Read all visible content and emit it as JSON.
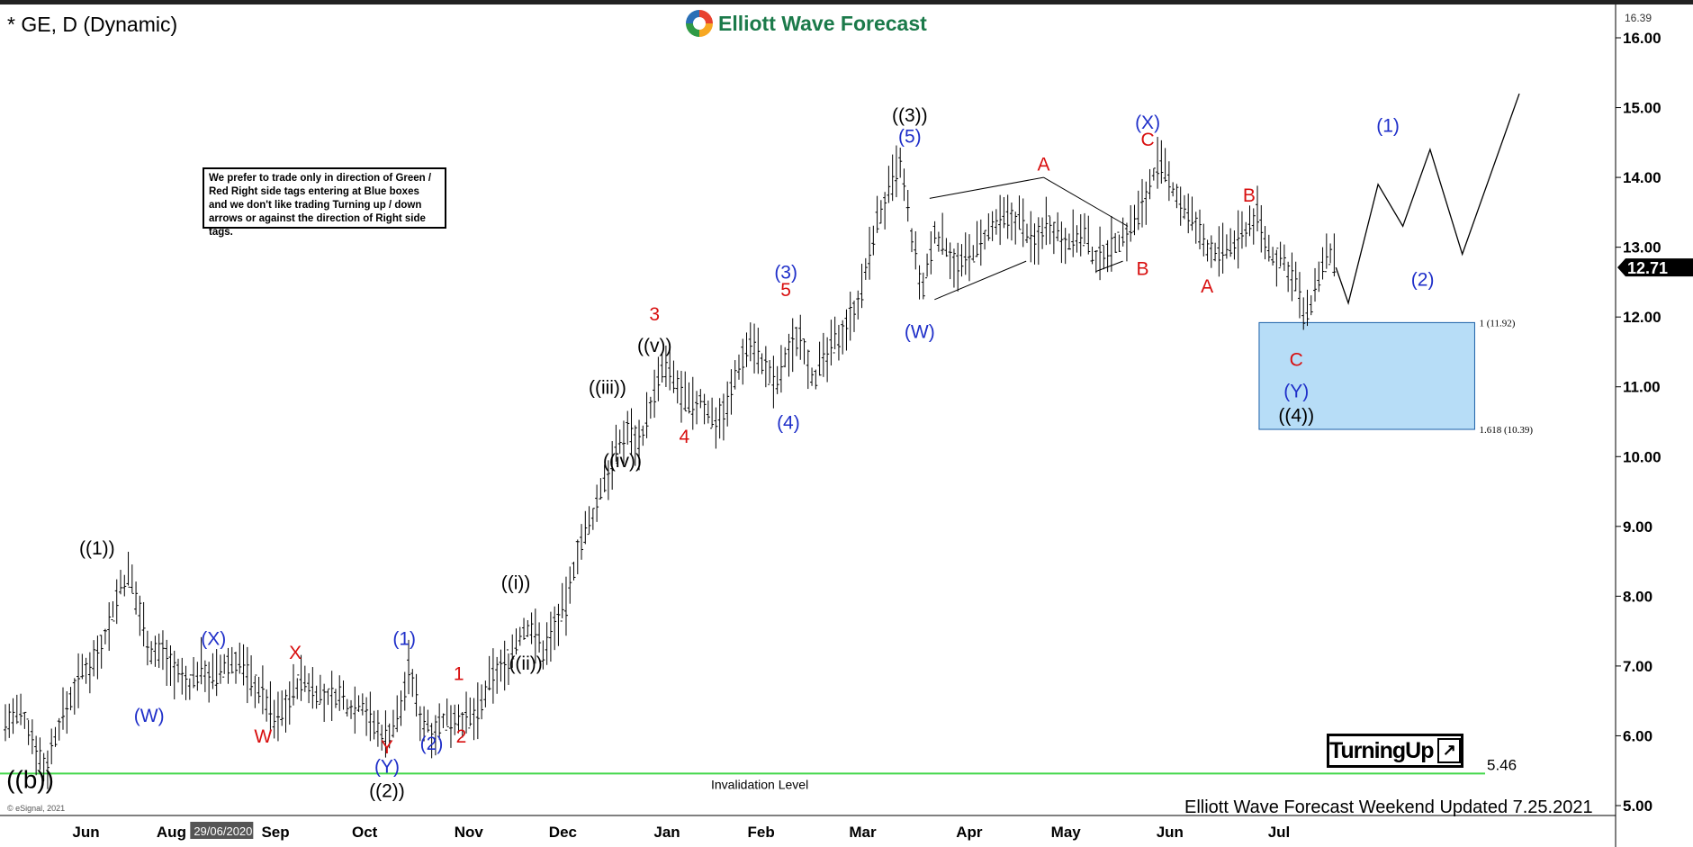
{
  "header": {
    "chart_title": "* GE, D (Dynamic)",
    "brand_name": "Elliott Wave Forecast",
    "top_price_badge": "16.39"
  },
  "note_text": "We prefer to trade only in direction of Green / Red Right side tags entering at Blue boxes and we don't like trading Turning up / down arrows or against the direction of Right side tags.",
  "footer": {
    "updated": "Elliott Wave Forecast Weekend Updated 7.25.2021",
    "esignal": "© eSignal, 2021"
  },
  "turning_label": "TurningUp",
  "colors": {
    "wave_blue": "#1f2fc9",
    "wave_red": "#d80f0f",
    "wave_black": "#000000",
    "invalidation_green": "#43d64a",
    "blue_box": "#b7ddf7",
    "blue_box_border": "#1a5fa8",
    "last_price_bg": "#000000"
  },
  "chart_data": {
    "type": "ohlc",
    "title": "* GE, D (Dynamic)",
    "y_axis": {
      "ticks": [
        5.0,
        6.0,
        7.0,
        8.0,
        9.0,
        10.0,
        11.0,
        12.0,
        13.0,
        14.0,
        15.0,
        16.0
      ],
      "tick_labels": [
        "5.00",
        "6.00",
        "7.00",
        "8.00",
        "9.00",
        "10.00",
        "11.00",
        "12.00",
        "13.00",
        "14.00",
        "15.00",
        "16.00"
      ],
      "range": [
        4.8,
        16.5
      ],
      "last_price": "12.71"
    },
    "x_axis": {
      "labels": [
        "Jun",
        "29/06/2020",
        "Aug",
        "Sep",
        "Oct",
        "Nov",
        "Dec",
        "Jan",
        "Feb",
        "Mar",
        "Apr",
        "May",
        "Jun",
        "Jul"
      ],
      "label_day_index": [
        10,
        31,
        67,
        109,
        145,
        187,
        225,
        267,
        305,
        346,
        389,
        428,
        470,
        514
      ],
      "range_days": [
        0,
        680
      ]
    },
    "price_path": [
      [
        0,
        6.2
      ],
      [
        6,
        6.3
      ],
      [
        11,
        6.0
      ],
      [
        16,
        5.5
      ],
      [
        21,
        6.1
      ],
      [
        26,
        6.5
      ],
      [
        31,
        6.9
      ],
      [
        36,
        7.1
      ],
      [
        41,
        7.5
      ],
      [
        46,
        8.1
      ],
      [
        50,
        8.3
      ],
      [
        54,
        7.8
      ],
      [
        59,
        7.2
      ],
      [
        64,
        7.2
      ],
      [
        69,
        6.9
      ],
      [
        74,
        6.7
      ],
      [
        79,
        7.0
      ],
      [
        84,
        6.8
      ],
      [
        89,
        7.0
      ],
      [
        94,
        7.1
      ],
      [
        99,
        6.8
      ],
      [
        104,
        6.6
      ],
      [
        109,
        6.2
      ],
      [
        114,
        6.5
      ],
      [
        119,
        6.8
      ],
      [
        124,
        6.7
      ],
      [
        129,
        6.5
      ],
      [
        134,
        6.6
      ],
      [
        139,
        6.4
      ],
      [
        144,
        6.5
      ],
      [
        149,
        6.1
      ],
      [
        154,
        6.0
      ],
      [
        159,
        6.3
      ],
      [
        163,
        7.0
      ],
      [
        167,
        6.3
      ],
      [
        172,
        6.1
      ],
      [
        177,
        6.2
      ],
      [
        182,
        6.3
      ],
      [
        187,
        6.2
      ],
      [
        192,
        6.4
      ],
      [
        197,
        6.9
      ],
      [
        202,
        7.0
      ],
      [
        207,
        7.4
      ],
      [
        212,
        7.6
      ],
      [
        217,
        7.2
      ],
      [
        222,
        7.6
      ],
      [
        227,
        7.9
      ],
      [
        231,
        8.7
      ],
      [
        236,
        9.0
      ],
      [
        241,
        9.6
      ],
      [
        246,
        10.0
      ],
      [
        251,
        10.4
      ],
      [
        256,
        10.2
      ],
      [
        261,
        10.8
      ],
      [
        266,
        11.3
      ],
      [
        271,
        11.0
      ],
      [
        276,
        10.7
      ],
      [
        281,
        10.8
      ],
      [
        286,
        10.5
      ],
      [
        291,
        10.7
      ],
      [
        296,
        11.3
      ],
      [
        301,
        11.7
      ],
      [
        306,
        11.3
      ],
      [
        311,
        11.0
      ],
      [
        316,
        11.5
      ],
      [
        321,
        11.8
      ],
      [
        326,
        11.1
      ],
      [
        331,
        11.4
      ],
      [
        336,
        11.7
      ],
      [
        341,
        12.0
      ],
      [
        346,
        12.4
      ],
      [
        351,
        13.3
      ],
      [
        356,
        13.7
      ],
      [
        361,
        14.2
      ],
      [
        366,
        13.1
      ],
      [
        370,
        12.3
      ],
      [
        375,
        13.2
      ],
      [
        380,
        13.0
      ],
      [
        385,
        12.7
      ],
      [
        390,
        12.9
      ],
      [
        395,
        13.1
      ],
      [
        400,
        13.3
      ],
      [
        405,
        13.4
      ],
      [
        410,
        13.4
      ],
      [
        415,
        13.0
      ],
      [
        420,
        13.4
      ],
      [
        425,
        13.2
      ],
      [
        430,
        13.1
      ],
      [
        435,
        13.2
      ],
      [
        440,
        12.8
      ],
      [
        445,
        13.0
      ],
      [
        450,
        13.1
      ],
      [
        455,
        13.3
      ],
      [
        460,
        13.7
      ],
      [
        465,
        14.2
      ],
      [
        470,
        13.9
      ],
      [
        475,
        13.6
      ],
      [
        480,
        13.3
      ],
      [
        485,
        13.0
      ],
      [
        490,
        12.9
      ],
      [
        495,
        13.0
      ],
      [
        500,
        13.2
      ],
      [
        505,
        13.5
      ],
      [
        510,
        12.9
      ],
      [
        515,
        12.8
      ],
      [
        520,
        12.6
      ],
      [
        525,
        11.9
      ],
      [
        530,
        12.6
      ],
      [
        535,
        12.9
      ],
      [
        537,
        12.71
      ]
    ],
    "projection": [
      [
        537,
        12.71
      ],
      [
        542,
        12.2
      ],
      [
        554,
        13.9
      ],
      [
        564,
        13.3
      ],
      [
        575,
        14.4
      ],
      [
        588,
        12.9
      ],
      [
        611,
        15.2
      ]
    ],
    "blue_box": {
      "price_top": 11.92,
      "price_bottom": 10.39,
      "day_start": 506,
      "day_end": 593
    },
    "fib_labels": [
      {
        "text": "1 (11.92)",
        "price": 11.92
      },
      {
        "text": "1.618 (10.39)",
        "price": 10.39
      }
    ],
    "invalidation": {
      "price": 5.46,
      "label": "Invalidation Level",
      "value_text": "5.46"
    },
    "wave_labels": [
      {
        "text": "((b))",
        "day": 10,
        "price": 5.25,
        "color": "black"
      },
      {
        "text": "((1))",
        "day": 37,
        "price": 8.6,
        "color": "black"
      },
      {
        "text": "(W)",
        "day": 58,
        "price": 6.2,
        "color": "blue"
      },
      {
        "text": "(X)",
        "day": 84,
        "price": 7.3,
        "color": "blue"
      },
      {
        "text": "W",
        "day": 104,
        "price": 5.9,
        "color": "red"
      },
      {
        "text": "X",
        "day": 117,
        "price": 7.1,
        "color": "red"
      },
      {
        "text": "Y",
        "day": 154,
        "price": 5.75,
        "color": "red"
      },
      {
        "text": "(Y)",
        "day": 154,
        "price": 5.47,
        "color": "blue"
      },
      {
        "text": "((2))",
        "day": 154,
        "price": 5.12,
        "color": "black"
      },
      {
        "text": "(1)",
        "day": 161,
        "price": 7.3,
        "color": "blue"
      },
      {
        "text": "(2)",
        "day": 172,
        "price": 5.8,
        "color": "blue"
      },
      {
        "text": "1",
        "day": 183,
        "price": 6.8,
        "color": "red"
      },
      {
        "text": "2",
        "day": 184,
        "price": 5.9,
        "color": "red"
      },
      {
        "text": "((i))",
        "day": 206,
        "price": 8.1,
        "color": "black"
      },
      {
        "text": "((ii))",
        "day": 210,
        "price": 6.95,
        "color": "black"
      },
      {
        "text": "((iii))",
        "day": 243,
        "price": 10.9,
        "color": "black"
      },
      {
        "text": "((iv))",
        "day": 249,
        "price": 9.85,
        "color": "black"
      },
      {
        "text": "3",
        "day": 262,
        "price": 11.95,
        "color": "red"
      },
      {
        "text": "((v))",
        "day": 262,
        "price": 11.5,
        "color": "black"
      },
      {
        "text": "4",
        "day": 274,
        "price": 10.2,
        "color": "red"
      },
      {
        "text": "(3)",
        "day": 315,
        "price": 12.55,
        "color": "blue"
      },
      {
        "text": "5",
        "day": 315,
        "price": 12.3,
        "color": "red"
      },
      {
        "text": "(4)",
        "day": 316,
        "price": 10.4,
        "color": "blue"
      },
      {
        "text": "((3))",
        "day": 365,
        "price": 14.8,
        "color": "black"
      },
      {
        "text": "(5)",
        "day": 365,
        "price": 14.5,
        "color": "blue"
      },
      {
        "text": "(W)",
        "day": 369,
        "price": 11.7,
        "color": "blue"
      },
      {
        "text": "A",
        "day": 419,
        "price": 14.1,
        "color": "red"
      },
      {
        "text": "B",
        "day": 459,
        "price": 12.6,
        "color": "red"
      },
      {
        "text": "(X)",
        "day": 461,
        "price": 14.7,
        "color": "blue"
      },
      {
        "text": "C",
        "day": 461,
        "price": 14.45,
        "color": "red"
      },
      {
        "text": "B",
        "day": 502,
        "price": 13.65,
        "color": "red"
      },
      {
        "text": "A",
        "day": 485,
        "price": 12.35,
        "color": "red"
      },
      {
        "text": "C",
        "day": 521,
        "price": 11.3,
        "color": "red"
      },
      {
        "text": "(Y)",
        "day": 521,
        "price": 10.85,
        "color": "blue"
      },
      {
        "text": "((4))",
        "day": 521,
        "price": 10.5,
        "color": "black"
      },
      {
        "text": "(1)",
        "day": 558,
        "price": 14.65,
        "color": "blue"
      },
      {
        "text": "(2)",
        "day": 572,
        "price": 12.45,
        "color": "blue"
      }
    ],
    "grid": false
  }
}
